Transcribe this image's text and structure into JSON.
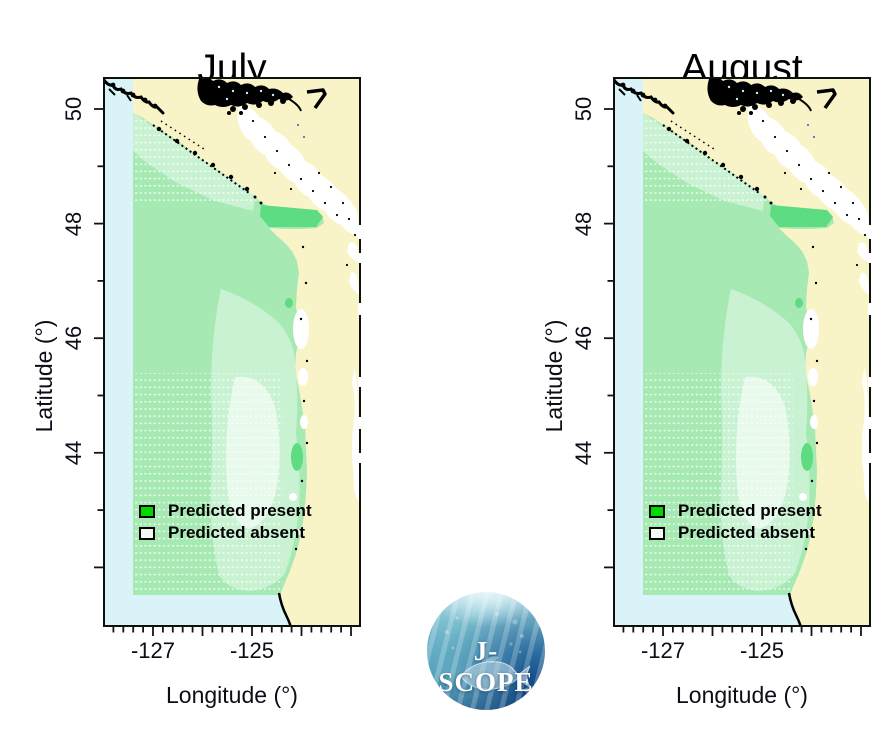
{
  "panels": [
    {
      "title": "July"
    },
    {
      "title": "August"
    }
  ],
  "axes": {
    "lat_label": "Latitude (°)",
    "lon_label": "Longitude (°)",
    "lat_ticks": [
      "50",
      "48",
      "46",
      "44"
    ],
    "lon_ticks": [
      "-127",
      "-125"
    ]
  },
  "legend": {
    "present_label": "Predicted present",
    "absent_label": "Predicted absent"
  },
  "logo": {
    "text": "J-SCOPE"
  },
  "colors": {
    "land": "#f9f4c8",
    "ocean": "#d9f3f8",
    "green_main": "#a6e9b3",
    "green_light": "#c9f2d3",
    "green_pale": "#e7faec",
    "green_dark": "#5ddc81",
    "coast": "#000000",
    "legend_present": "#00d800",
    "legend_absent": "#f2f9f2",
    "axis_text": "#0d0d18"
  },
  "figure": {
    "type": "map",
    "description_from_pixels": "Two coastal map panels (July, August) showing predicted presence (green shading) vs absence over the northeast Pacific coast; pale yellow land, light blue ocean margin, black coastline detail",
    "lat_axis_tick_values": [
      50,
      48,
      46,
      44
    ],
    "lon_axis_tick_values": [
      -127,
      -125
    ],
    "legend_categories": [
      "Predicted present",
      "Predicted absent"
    ]
  }
}
